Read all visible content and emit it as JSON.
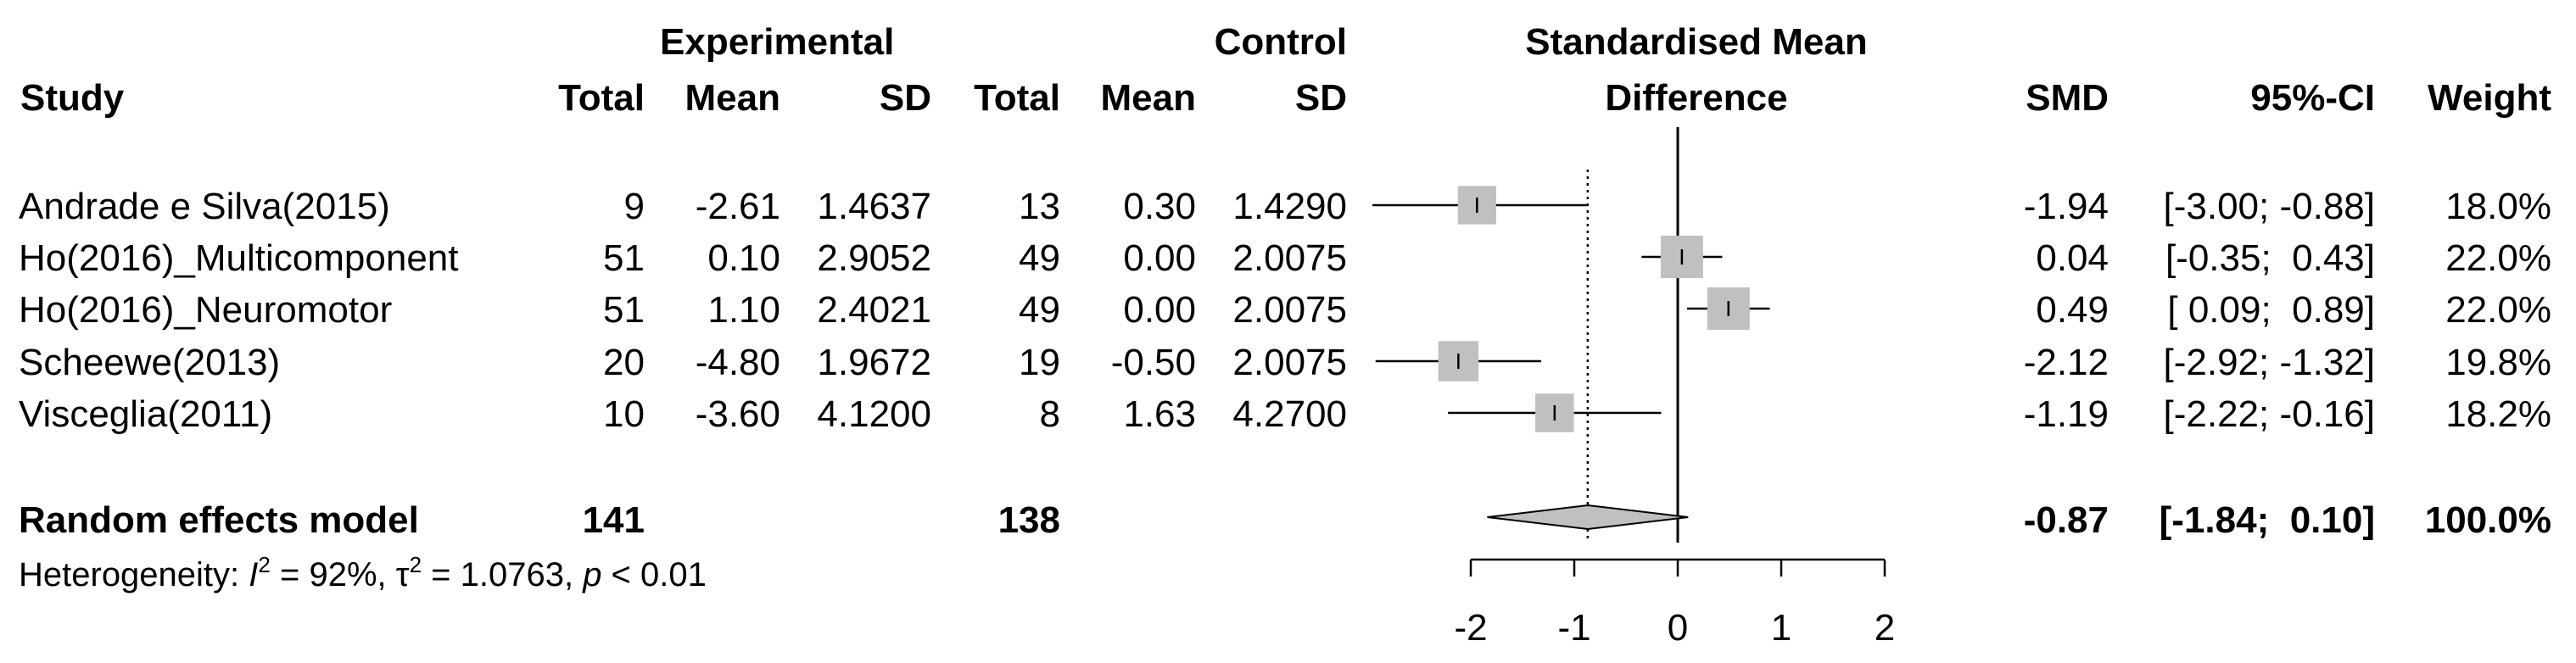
{
  "headers": {
    "experimental": "Experimental",
    "control": "Control",
    "smd_title_line1": "Standardised Mean",
    "smd_title_line2": "Difference",
    "study": "Study",
    "exp_total": "Total",
    "exp_mean": "Mean",
    "exp_sd": "SD",
    "ctrl_total": "Total",
    "ctrl_mean": "Mean",
    "ctrl_sd": "SD",
    "smd": "SMD",
    "ci": "95%-CI",
    "weight": "Weight"
  },
  "studies": [
    {
      "name": "Andrade e Silva(2015)",
      "exp_total": "9",
      "exp_mean": "-2.61",
      "exp_sd": "1.4637",
      "ctrl_total": "13",
      "ctrl_mean": "0.30",
      "ctrl_sd": "1.4290",
      "smd": "-1.94",
      "ci": "[-3.00; -0.88]",
      "weight": "18.0%"
    },
    {
      "name": "Ho(2016)_Multicomponent",
      "exp_total": "51",
      "exp_mean": "0.10",
      "exp_sd": "2.9052",
      "ctrl_total": "49",
      "ctrl_mean": "0.00",
      "ctrl_sd": "2.0075",
      "smd": "0.04",
      "ci": "[-0.35;  0.43]",
      "weight": "22.0%"
    },
    {
      "name": "Ho(2016)_Neuromotor",
      "exp_total": "51",
      "exp_mean": "1.10",
      "exp_sd": "2.4021",
      "ctrl_total": "49",
      "ctrl_mean": "0.00",
      "ctrl_sd": "2.0075",
      "smd": "0.49",
      "ci": "[ 0.09;  0.89]",
      "weight": "22.0%"
    },
    {
      "name": "Scheewe(2013)",
      "exp_total": "20",
      "exp_mean": "-4.80",
      "exp_sd": "1.9672",
      "ctrl_total": "19",
      "ctrl_mean": "-0.50",
      "ctrl_sd": "2.0075",
      "smd": "-2.12",
      "ci": "[-2.92; -1.32]",
      "weight": "19.8%"
    },
    {
      "name": "Visceglia(2011)",
      "exp_total": "10",
      "exp_mean": "-3.60",
      "exp_sd": "4.1200",
      "ctrl_total": "8",
      "ctrl_mean": "1.63",
      "ctrl_sd": "4.2700",
      "smd": "-1.19",
      "ci": "[-2.22; -0.16]",
      "weight": "18.2%"
    }
  ],
  "pooled": {
    "label": "Random effects model",
    "exp_total": "141",
    "ctrl_total": "138",
    "smd": "-0.87",
    "ci": "[-1.84;  0.10]",
    "weight": "100.0%"
  },
  "heterogeneity": {
    "prefix": "Heterogeneity: ",
    "i_symbol": "I",
    "i_value": " = 92%, ",
    "tau_symbol": "τ",
    "tau_value": " = 1.0763, ",
    "p_symbol": "p",
    "p_value": " < 0.01",
    "squared": "2"
  },
  "chart_data": {
    "type": "forest",
    "xlabel": "Standardised Mean Difference",
    "xlim": [
      -2,
      2
    ],
    "ticks": [
      -2,
      -1,
      0,
      1,
      2
    ],
    "tick_labels": [
      "-2",
      "-1",
      "0",
      "1",
      "2"
    ],
    "reference_line": 0,
    "pooled_line": -0.87,
    "studies": [
      {
        "name": "Andrade e Silva(2015)",
        "smd": -1.94,
        "lower": -3.0,
        "upper": -0.88,
        "weight": 18.0,
        "clipped_left": true
      },
      {
        "name": "Ho(2016)_Multicomponent",
        "smd": 0.04,
        "lower": -0.35,
        "upper": 0.43,
        "weight": 22.0
      },
      {
        "name": "Ho(2016)_Neuromotor",
        "smd": 0.49,
        "lower": 0.09,
        "upper": 0.89,
        "weight": 22.0
      },
      {
        "name": "Scheewe(2013)",
        "smd": -2.12,
        "lower": -2.92,
        "upper": -1.32,
        "weight": 19.8,
        "clipped_left": true
      },
      {
        "name": "Visceglia(2011)",
        "smd": -1.19,
        "lower": -2.22,
        "upper": -0.16,
        "weight": 18.2,
        "clipped_left": true
      }
    ],
    "pooled": {
      "smd": -0.87,
      "lower": -1.84,
      "upper": 0.1,
      "weight": 100.0
    },
    "colors": {
      "box": "#c0c0c0",
      "diamond": "#c0c0c0",
      "line": "#000000"
    }
  }
}
